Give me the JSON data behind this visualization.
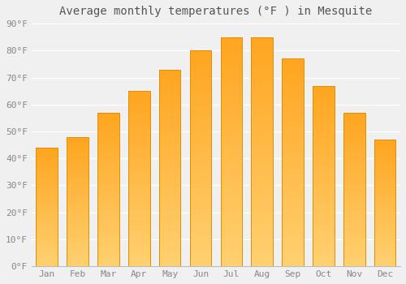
{
  "months": [
    "Jan",
    "Feb",
    "Mar",
    "Apr",
    "May",
    "Jun",
    "Jul",
    "Aug",
    "Sep",
    "Oct",
    "Nov",
    "Dec"
  ],
  "values": [
    44,
    48,
    57,
    65,
    73,
    80,
    85,
    85,
    77,
    67,
    57,
    47
  ],
  "title": "Average monthly temperatures (°F ) in Mesquite",
  "bar_color": "#FFA520",
  "bar_color_light": "#FFD070",
  "bar_edge_color": "#E09000",
  "ylim": [
    0,
    90
  ],
  "yticks": [
    0,
    10,
    20,
    30,
    40,
    50,
    60,
    70,
    80,
    90
  ],
  "ytick_labels": [
    "0°F",
    "10°F",
    "20°F",
    "30°F",
    "40°F",
    "50°F",
    "60°F",
    "70°F",
    "80°F",
    "90°F"
  ],
  "background_color": "#f0f0f0",
  "grid_color": "#ffffff",
  "title_fontsize": 10,
  "tick_fontsize": 8,
  "bar_width": 0.7,
  "gradient_steps": 50
}
